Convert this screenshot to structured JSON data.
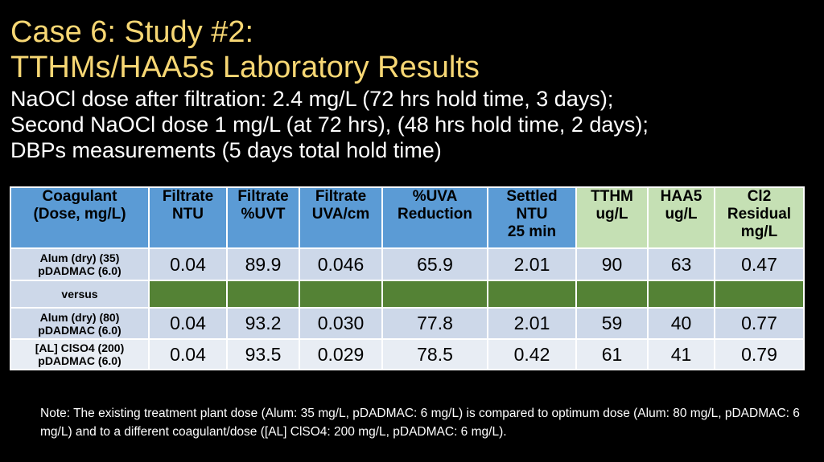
{
  "title": {
    "line1": "Case 6:  Study #2:",
    "line2": "TTHMs/HAA5s Laboratory Results"
  },
  "subtitle": {
    "line1": "NaOCl dose after filtration: 2.4 mg/L (72 hrs hold time, 3 days);",
    "line2": "Second NaOCl dose 1 mg/L (at 72 hrs), (48 hrs hold time, 2 days);",
    "line3": "DBPs measurements (5 days total hold time)"
  },
  "table": {
    "headers": [
      [
        "Coagulant",
        "(Dose, mg/L)"
      ],
      [
        "Filtrate",
        "NTU"
      ],
      [
        "Filtrate",
        "%UVT"
      ],
      [
        "Filtrate",
        "UVA/cm"
      ],
      [
        "%UVA",
        "Reduction"
      ],
      [
        "Settled",
        "NTU",
        "25 min"
      ],
      [
        "TTHM",
        "ug/L"
      ],
      [
        "HAA5",
        "ug/L"
      ],
      [
        "Cl2",
        "Residual",
        "mg/L"
      ]
    ],
    "rows": [
      {
        "label": [
          "Alum (dry) (35)",
          "pDADMAC (6.0)"
        ],
        "values": [
          "0.04",
          "89.9",
          "0.046",
          "65.9",
          "2.01",
          "90",
          "63",
          "0.47"
        ]
      },
      {
        "label": [
          "versus"
        ],
        "values": []
      },
      {
        "label": [
          "Alum (dry) (80)",
          "pDADMAC (6.0)"
        ],
        "values": [
          "0.04",
          "93.2",
          "0.030",
          "77.8",
          "2.01",
          "59",
          "40",
          "0.77"
        ]
      },
      {
        "label": [
          "[AL] ClSO4 (200)",
          "pDADMAC (6.0)"
        ],
        "values": [
          "0.04",
          "93.5",
          "0.029",
          "78.5",
          "0.42",
          "61",
          "41",
          "0.79"
        ]
      }
    ]
  },
  "note": "Note: The existing treatment plant dose (Alum: 35 mg/L, pDADMAC: 6 mg/L) is compared to optimum dose (Alum: 80 mg/L, pDADMAC: 6 mg/L) and to a different coagulant/dose ([AL] ClSO4: 200 mg/L, pDADMAC: 6 mg/L).",
  "colors": {
    "title": "#f7d774",
    "header_blue": "#5b9bd5",
    "header_green": "#c5e0b4",
    "row_light": "#cdd8e9",
    "row_lighter": "#e8edf4",
    "versus_green": "#548235"
  }
}
